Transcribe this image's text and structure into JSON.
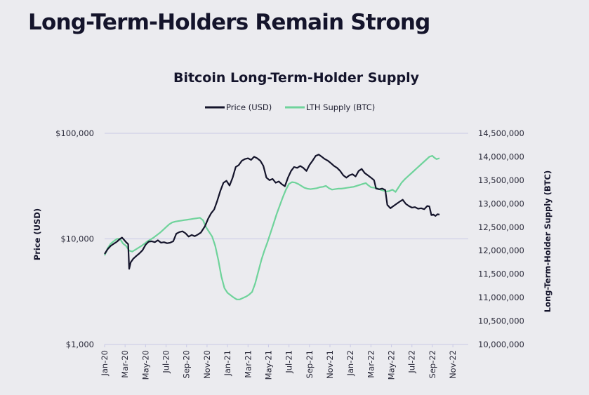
{
  "page": {
    "title": "Long-Term-Holders Remain Strong"
  },
  "chart_data": {
    "type": "line",
    "title": "Bitcoin Long-Term-Holder Supply",
    "legend": {
      "placement": "top-center",
      "entries": [
        {
          "name": "Price (USD)",
          "color": "#14142b"
        },
        {
          "name": "LTH Supply (BTC)",
          "color": "#6fd39b"
        }
      ]
    },
    "x_axis": {
      "label": "",
      "ticks": [
        "Jan-20",
        "Mar-20",
        "May-20",
        "Jul-20",
        "Sep-20",
        "Nov-20",
        "Jan-21",
        "Mar-21",
        "May-21",
        "Jul-21",
        "Sep-21",
        "Nov-21",
        "Jan-22",
        "Mar-22",
        "May-22",
        "Jul-22",
        "Sep-22",
        "Nov-22"
      ],
      "range_months": [
        0,
        35.5
      ]
    },
    "y_left": {
      "label": "Price (USD)",
      "scale": "log",
      "range": [
        1000,
        100000
      ],
      "ticks": [
        {
          "value": 1000,
          "label": "$1,000"
        },
        {
          "value": 10000,
          "label": "$10,000"
        },
        {
          "value": 100000,
          "label": "$100,000"
        }
      ],
      "grid": true
    },
    "y_right": {
      "label": "Long-Term-Holder Supply (BTC)",
      "scale": "linear",
      "range": [
        10000000,
        14500000
      ],
      "ticks": [
        {
          "value": 10000000,
          "label": "10,000,000"
        },
        {
          "value": 10500000,
          "label": "10,500,000"
        },
        {
          "value": 11000000,
          "label": "11,000,000"
        },
        {
          "value": 11500000,
          "label": "11,500,000"
        },
        {
          "value": 12000000,
          "label": "12,000,000"
        },
        {
          "value": 12500000,
          "label": "12,500,000"
        },
        {
          "value": 13000000,
          "label": "13,000,000"
        },
        {
          "value": 13500000,
          "label": "13,500,000"
        },
        {
          "value": 14000000,
          "label": "14,000,000"
        },
        {
          "value": 14500000,
          "label": "14,500,000"
        }
      ]
    },
    "series": [
      {
        "name": "Price (USD)",
        "axis": "left",
        "color": "#14142b",
        "points": [
          [
            0,
            7200
          ],
          [
            0.3,
            8000
          ],
          [
            0.6,
            8600
          ],
          [
            0.9,
            9000
          ],
          [
            1.2,
            9400
          ],
          [
            1.5,
            10000
          ],
          [
            1.7,
            10300
          ],
          [
            1.9,
            9800
          ],
          [
            2.1,
            9300
          ],
          [
            2.3,
            8900
          ],
          [
            2.4,
            5200
          ],
          [
            2.55,
            6000
          ],
          [
            2.8,
            6500
          ],
          [
            3.1,
            6900
          ],
          [
            3.4,
            7300
          ],
          [
            3.7,
            7800
          ],
          [
            4.0,
            8800
          ],
          [
            4.3,
            9400
          ],
          [
            4.6,
            9500
          ],
          [
            4.9,
            9300
          ],
          [
            5.2,
            9700
          ],
          [
            5.5,
            9200
          ],
          [
            5.8,
            9300
          ],
          [
            6.1,
            9100
          ],
          [
            6.4,
            9200
          ],
          [
            6.7,
            9500
          ],
          [
            7.0,
            11200
          ],
          [
            7.3,
            11600
          ],
          [
            7.6,
            11800
          ],
          [
            7.9,
            11300
          ],
          [
            8.2,
            10500
          ],
          [
            8.5,
            10900
          ],
          [
            8.8,
            10600
          ],
          [
            9.1,
            11000
          ],
          [
            9.4,
            11500
          ],
          [
            9.8,
            13200
          ],
          [
            10.1,
            15500
          ],
          [
            10.4,
            17500
          ],
          [
            10.7,
            19000
          ],
          [
            11.0,
            23000
          ],
          [
            11.3,
            28500
          ],
          [
            11.6,
            34000
          ],
          [
            11.9,
            35500
          ],
          [
            12.2,
            32000
          ],
          [
            12.5,
            38000
          ],
          [
            12.8,
            48000
          ],
          [
            13.1,
            50000
          ],
          [
            13.4,
            55000
          ],
          [
            13.7,
            57000
          ],
          [
            14.0,
            58000
          ],
          [
            14.3,
            56000
          ],
          [
            14.6,
            60000
          ],
          [
            14.9,
            58000
          ],
          [
            15.2,
            55000
          ],
          [
            15.5,
            49000
          ],
          [
            15.8,
            38000
          ],
          [
            16.1,
            36000
          ],
          [
            16.4,
            37000
          ],
          [
            16.7,
            34000
          ],
          [
            17.0,
            35000
          ],
          [
            17.3,
            33000
          ],
          [
            17.6,
            31500
          ],
          [
            17.9,
            38000
          ],
          [
            18.2,
            44000
          ],
          [
            18.5,
            48000
          ],
          [
            18.8,
            47000
          ],
          [
            19.1,
            49000
          ],
          [
            19.4,
            47000
          ],
          [
            19.7,
            44000
          ],
          [
            20.0,
            50000
          ],
          [
            20.3,
            55000
          ],
          [
            20.6,
            61000
          ],
          [
            20.9,
            63000
          ],
          [
            21.2,
            60000
          ],
          [
            21.5,
            57000
          ],
          [
            21.8,
            55000
          ],
          [
            22.1,
            52000
          ],
          [
            22.4,
            49000
          ],
          [
            22.7,
            47000
          ],
          [
            23.0,
            44000
          ],
          [
            23.3,
            40000
          ],
          [
            23.6,
            38000
          ],
          [
            23.9,
            40000
          ],
          [
            24.2,
            41000
          ],
          [
            24.5,
            39000
          ],
          [
            24.8,
            44000
          ],
          [
            25.1,
            46000
          ],
          [
            25.4,
            42000
          ],
          [
            25.7,
            40000
          ],
          [
            26.0,
            38000
          ],
          [
            26.3,
            36000
          ],
          [
            26.5,
            30000
          ],
          [
            26.8,
            29500
          ],
          [
            27.1,
            30000
          ],
          [
            27.4,
            29000
          ],
          [
            27.6,
            21000
          ],
          [
            27.9,
            19500
          ],
          [
            28.2,
            20500
          ],
          [
            28.5,
            21500
          ],
          [
            28.8,
            22500
          ],
          [
            29.1,
            23500
          ],
          [
            29.4,
            21500
          ],
          [
            29.7,
            20500
          ],
          [
            30.0,
            19800
          ],
          [
            30.3,
            20000
          ],
          [
            30.6,
            19300
          ],
          [
            30.9,
            19500
          ],
          [
            31.2,
            19100
          ],
          [
            31.5,
            20500
          ],
          [
            31.7,
            20300
          ],
          [
            31.9,
            16800
          ],
          [
            32.1,
            17000
          ],
          [
            32.3,
            16500
          ],
          [
            32.5,
            17100
          ],
          [
            32.7,
            17000
          ]
        ]
      },
      {
        "name": "LTH Supply (BTC)",
        "axis": "right",
        "color": "#6fd39b",
        "points": [
          [
            0,
            11900000
          ],
          [
            0.3,
            12050000
          ],
          [
            0.6,
            12150000
          ],
          [
            0.9,
            12200000
          ],
          [
            1.2,
            12250000
          ],
          [
            1.5,
            12250000
          ],
          [
            1.8,
            12150000
          ],
          [
            2.1,
            12100000
          ],
          [
            2.4,
            12000000
          ],
          [
            2.7,
            11980000
          ],
          [
            3.0,
            12020000
          ],
          [
            3.3,
            12060000
          ],
          [
            3.6,
            12100000
          ],
          [
            3.9,
            12150000
          ],
          [
            4.2,
            12200000
          ],
          [
            4.5,
            12240000
          ],
          [
            4.8,
            12280000
          ],
          [
            5.1,
            12330000
          ],
          [
            5.4,
            12380000
          ],
          [
            5.7,
            12440000
          ],
          [
            6.0,
            12500000
          ],
          [
            6.3,
            12560000
          ],
          [
            6.6,
            12600000
          ],
          [
            6.9,
            12620000
          ],
          [
            7.2,
            12630000
          ],
          [
            7.5,
            12640000
          ],
          [
            7.8,
            12650000
          ],
          [
            8.1,
            12660000
          ],
          [
            8.4,
            12670000
          ],
          [
            8.7,
            12680000
          ],
          [
            9.0,
            12690000
          ],
          [
            9.3,
            12700000
          ],
          [
            9.6,
            12650000
          ],
          [
            9.9,
            12500000
          ],
          [
            10.2,
            12400000
          ],
          [
            10.5,
            12300000
          ],
          [
            10.8,
            12100000
          ],
          [
            11.1,
            11800000
          ],
          [
            11.4,
            11450000
          ],
          [
            11.7,
            11200000
          ],
          [
            12.0,
            11100000
          ],
          [
            12.3,
            11050000
          ],
          [
            12.6,
            11000000
          ],
          [
            12.9,
            10960000
          ],
          [
            13.2,
            10960000
          ],
          [
            13.5,
            10990000
          ],
          [
            13.8,
            11020000
          ],
          [
            14.1,
            11060000
          ],
          [
            14.4,
            11120000
          ],
          [
            14.7,
            11300000
          ],
          [
            15.0,
            11550000
          ],
          [
            15.3,
            11800000
          ],
          [
            15.6,
            12000000
          ],
          [
            15.9,
            12180000
          ],
          [
            16.2,
            12380000
          ],
          [
            16.5,
            12580000
          ],
          [
            16.8,
            12780000
          ],
          [
            17.1,
            12960000
          ],
          [
            17.4,
            13140000
          ],
          [
            17.7,
            13300000
          ],
          [
            18.0,
            13420000
          ],
          [
            18.3,
            13460000
          ],
          [
            18.6,
            13450000
          ],
          [
            18.9,
            13420000
          ],
          [
            19.2,
            13380000
          ],
          [
            19.5,
            13340000
          ],
          [
            19.8,
            13320000
          ],
          [
            20.1,
            13310000
          ],
          [
            20.4,
            13320000
          ],
          [
            20.7,
            13330000
          ],
          [
            21.0,
            13350000
          ],
          [
            21.3,
            13360000
          ],
          [
            21.6,
            13380000
          ],
          [
            21.9,
            13330000
          ],
          [
            22.2,
            13300000
          ],
          [
            22.5,
            13310000
          ],
          [
            22.8,
            13320000
          ],
          [
            23.1,
            13320000
          ],
          [
            23.4,
            13330000
          ],
          [
            23.7,
            13340000
          ],
          [
            24.0,
            13350000
          ],
          [
            24.3,
            13360000
          ],
          [
            24.6,
            13380000
          ],
          [
            24.9,
            13400000
          ],
          [
            25.2,
            13420000
          ],
          [
            25.5,
            13440000
          ],
          [
            25.7,
            13400000
          ],
          [
            26.0,
            13350000
          ],
          [
            26.3,
            13340000
          ],
          [
            26.6,
            13330000
          ],
          [
            26.9,
            13300000
          ],
          [
            27.2,
            13280000
          ],
          [
            27.5,
            13260000
          ],
          [
            27.8,
            13270000
          ],
          [
            28.1,
            13300000
          ],
          [
            28.4,
            13250000
          ],
          [
            28.7,
            13350000
          ],
          [
            29.0,
            13450000
          ],
          [
            29.3,
            13520000
          ],
          [
            29.6,
            13580000
          ],
          [
            29.9,
            13640000
          ],
          [
            30.2,
            13700000
          ],
          [
            30.5,
            13760000
          ],
          [
            30.8,
            13820000
          ],
          [
            31.1,
            13880000
          ],
          [
            31.4,
            13940000
          ],
          [
            31.7,
            14000000
          ],
          [
            32.0,
            14020000
          ],
          [
            32.2,
            13980000
          ],
          [
            32.4,
            13950000
          ],
          [
            32.7,
            13970000
          ]
        ]
      }
    ]
  }
}
